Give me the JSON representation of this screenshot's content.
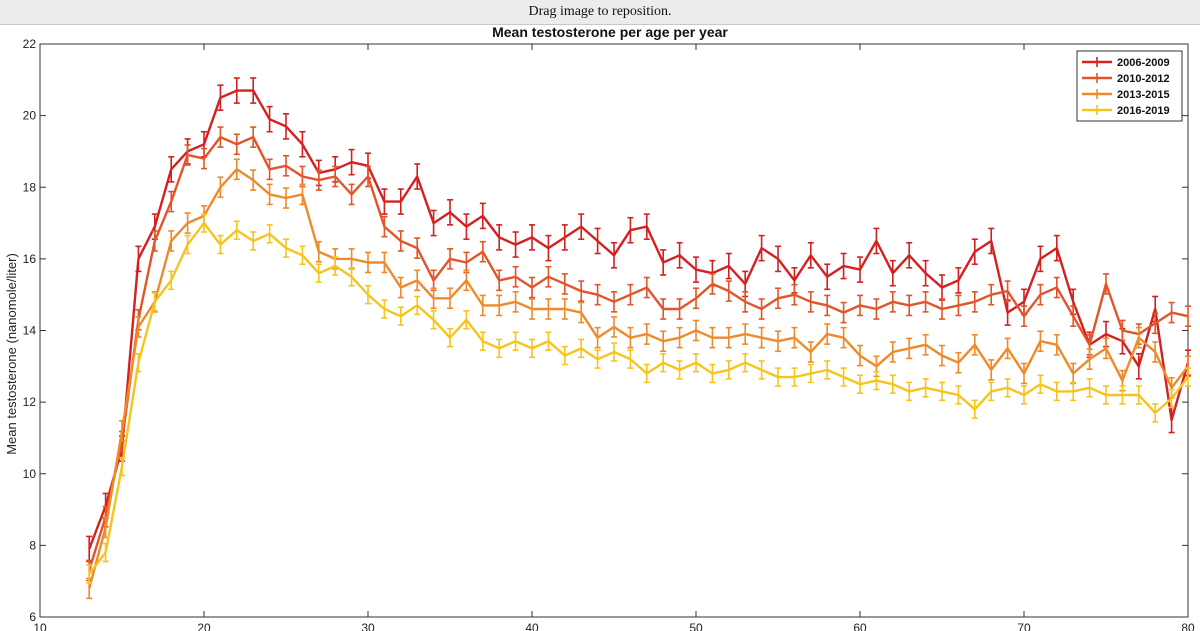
{
  "window": {
    "hint": "Drag image to reposition."
  },
  "chart_data": {
    "type": "line",
    "title": "Mean testosterone per age per year",
    "xlabel": "",
    "ylabel": "Mean testosterone (nanomole/liter)",
    "xlim": [
      10,
      80
    ],
    "ylim": [
      6,
      22
    ],
    "yticks": [
      6,
      8,
      10,
      12,
      14,
      16,
      18,
      20,
      22
    ],
    "xticks": [
      10,
      20,
      30,
      40,
      50,
      60,
      70,
      80
    ],
    "grid": false,
    "legend_position": "top-right",
    "x": [
      13,
      14,
      15,
      16,
      17,
      18,
      19,
      20,
      21,
      22,
      23,
      24,
      25,
      26,
      27,
      28,
      29,
      30,
      31,
      32,
      33,
      34,
      35,
      36,
      37,
      38,
      39,
      40,
      41,
      42,
      43,
      44,
      45,
      46,
      47,
      48,
      49,
      50,
      51,
      52,
      53,
      54,
      55,
      56,
      57,
      58,
      59,
      60,
      61,
      62,
      63,
      64,
      65,
      66,
      67,
      68,
      69,
      70,
      71,
      72,
      73,
      74,
      75,
      76,
      77,
      78,
      79,
      80
    ],
    "series": [
      {
        "name": "2006-2009",
        "color": "#d42020",
        "errbar": 0.35,
        "values": [
          7.9,
          9.1,
          10.7,
          16.0,
          16.9,
          18.5,
          19.0,
          19.2,
          20.5,
          20.7,
          20.7,
          19.9,
          19.7,
          19.2,
          18.4,
          18.5,
          18.7,
          18.6,
          17.6,
          17.6,
          18.3,
          17.0,
          17.3,
          16.9,
          17.2,
          16.6,
          16.4,
          16.6,
          16.3,
          16.6,
          16.9,
          16.5,
          16.1,
          16.8,
          16.9,
          15.9,
          16.1,
          15.7,
          15.6,
          15.8,
          15.3,
          16.3,
          16.0,
          15.4,
          16.1,
          15.5,
          15.8,
          15.7,
          16.5,
          15.6,
          16.1,
          15.6,
          15.2,
          15.4,
          16.2,
          16.5,
          14.5,
          14.8,
          16.0,
          16.3,
          14.8,
          13.6,
          13.9,
          13.7,
          13.0,
          14.6,
          11.5,
          13.1
        ]
      },
      {
        "name": "2010-2012",
        "color": "#e2552a",
        "errbar": 0.28,
        "values": [
          7.3,
          8.8,
          10.9,
          14.3,
          16.5,
          17.6,
          18.9,
          18.8,
          19.4,
          19.2,
          19.4,
          18.5,
          18.6,
          18.3,
          18.2,
          18.3,
          17.8,
          18.3,
          16.9,
          16.5,
          16.3,
          15.4,
          16.0,
          15.9,
          16.2,
          15.4,
          15.5,
          15.2,
          15.5,
          15.3,
          15.1,
          15.0,
          14.8,
          15.0,
          15.2,
          14.6,
          14.6,
          14.9,
          15.3,
          15.1,
          14.8,
          14.6,
          14.9,
          15.0,
          14.8,
          14.7,
          14.5,
          14.7,
          14.6,
          14.8,
          14.7,
          14.8,
          14.6,
          14.7,
          14.8,
          15.0,
          15.1,
          14.4,
          15.0,
          15.2,
          14.4,
          13.6,
          15.3,
          14.0,
          13.9,
          14.2,
          14.5,
          14.4
        ]
      },
      {
        "name": "2013-2015",
        "color": "#ee8a2a",
        "errbar": 0.28,
        "values": [
          6.8,
          8.5,
          11.2,
          14.1,
          14.8,
          16.5,
          17.0,
          17.2,
          18.0,
          18.5,
          18.2,
          17.8,
          17.7,
          17.8,
          16.2,
          16.0,
          16.0,
          15.9,
          15.9,
          15.2,
          15.4,
          14.9,
          14.9,
          15.4,
          14.7,
          14.7,
          14.8,
          14.6,
          14.6,
          14.6,
          14.5,
          13.8,
          14.1,
          13.8,
          13.9,
          13.7,
          13.8,
          14.0,
          13.8,
          13.8,
          13.9,
          13.8,
          13.7,
          13.8,
          13.4,
          13.9,
          13.8,
          13.3,
          13.0,
          13.4,
          13.5,
          13.6,
          13.3,
          13.1,
          13.6,
          12.9,
          13.5,
          12.8,
          13.7,
          13.6,
          12.8,
          13.2,
          13.5,
          12.6,
          13.8,
          13.4,
          12.4,
          13.0
        ]
      },
      {
        "name": "2016-2019",
        "color": "#f5c51e",
        "errbar": 0.25,
        "values": [
          7.2,
          7.8,
          10.2,
          13.1,
          14.8,
          15.4,
          16.4,
          17.0,
          16.4,
          16.8,
          16.5,
          16.7,
          16.3,
          16.1,
          15.6,
          15.8,
          15.5,
          15.0,
          14.6,
          14.4,
          14.7,
          14.3,
          13.8,
          14.3,
          13.7,
          13.5,
          13.7,
          13.5,
          13.7,
          13.3,
          13.5,
          13.2,
          13.4,
          13.2,
          12.8,
          13.1,
          12.9,
          13.1,
          12.8,
          12.9,
          13.1,
          12.9,
          12.7,
          12.7,
          12.8,
          12.9,
          12.7,
          12.5,
          12.6,
          12.5,
          12.3,
          12.4,
          12.3,
          12.2,
          11.8,
          12.3,
          12.4,
          12.2,
          12.5,
          12.3,
          12.3,
          12.4,
          12.2,
          12.2,
          12.2,
          11.7,
          12.1,
          12.7
        ]
      }
    ]
  }
}
